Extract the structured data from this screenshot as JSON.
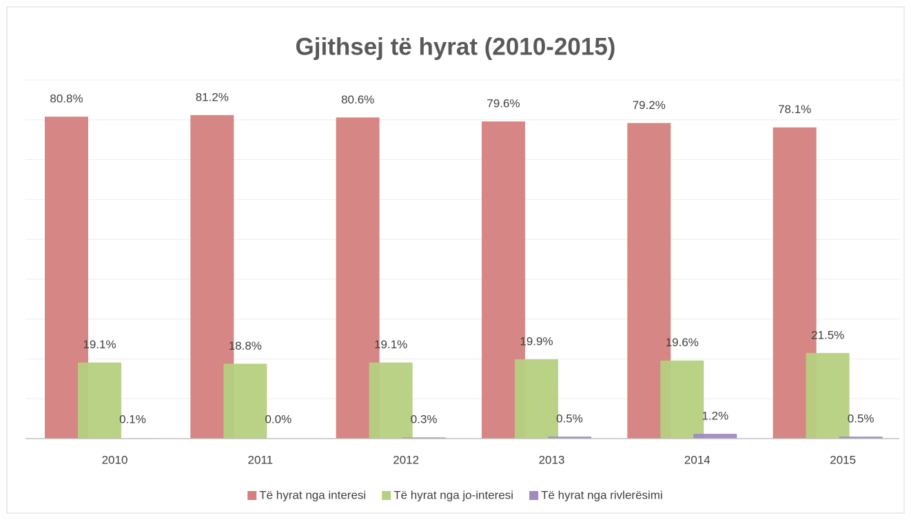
{
  "chart_data": {
    "type": "bar",
    "title": "Gjithsej të hyrat (2010-2015)",
    "categories": [
      "2010",
      "2011",
      "2012",
      "2013",
      "2014",
      "2015"
    ],
    "series": [
      {
        "name": "Të hyrat nga interesi",
        "color": "#d47f7d",
        "values": [
          80.8,
          81.2,
          80.6,
          79.6,
          79.2,
          78.1
        ],
        "value_labels": [
          "80.8%",
          "81.2%",
          "80.6%",
          "79.6%",
          "79.2%",
          "78.1%"
        ]
      },
      {
        "name": "Të hyrat nga jo-interesi",
        "color": "#b5d07f",
        "values": [
          19.1,
          18.8,
          19.1,
          19.9,
          19.6,
          21.5
        ],
        "value_labels": [
          "19.1%",
          "18.8%",
          "19.1%",
          "19.9%",
          "19.6%",
          "21.5%"
        ]
      },
      {
        "name": "Të hyrat nga rivlerësimi",
        "color": "#a08ac0",
        "values": [
          0.1,
          0.0,
          0.3,
          0.5,
          1.2,
          0.5
        ],
        "value_labels": [
          "0.1%",
          "0.0%",
          "0.3%",
          "0.5%",
          "1.2%",
          "0.5%"
        ]
      }
    ],
    "ylim": [
      0,
      90
    ],
    "yticks": [
      0,
      10,
      20,
      30,
      40,
      50,
      60,
      70,
      80,
      90
    ],
    "grid": true,
    "legend": "bottom"
  }
}
